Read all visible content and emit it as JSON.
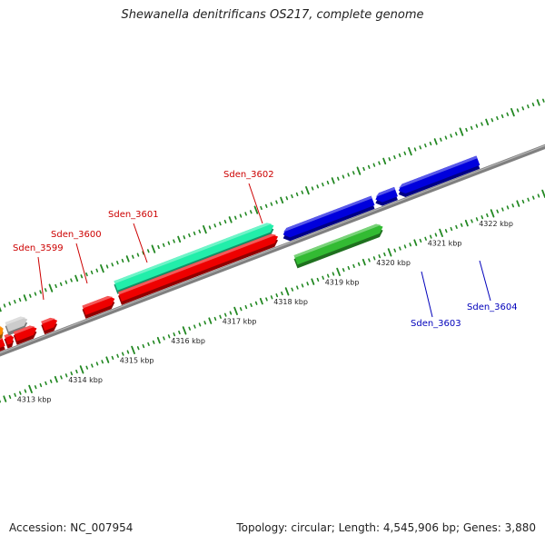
{
  "title": "Shewanella denitrificans OS217, complete genome",
  "footer": {
    "accession": "Accession: NC_007954",
    "topology": "Topology: circular; Length: 4,545,906 bp; Genes: 3,880"
  },
  "colors": {
    "red": "#ee0000",
    "blue": "#0000dd",
    "green": "#33bb33",
    "cyan": "#22eeaa",
    "orange": "#ff8c00",
    "gray": "#cccccc",
    "backbone": "#808080",
    "tick": "#228822",
    "label_red": "#cc0000",
    "label_blue": "#0000bb"
  },
  "scale": {
    "labels": [
      "4313 kbp",
      "4314 kbp",
      "4315 kbp",
      "4316 kbp",
      "4317 kbp",
      "4318 kbp",
      "4319 kbp",
      "4320 kbp",
      "4321 kbp",
      "4322 kbp"
    ]
  },
  "genes": [
    {
      "name": "gene-a",
      "start": 4312.5,
      "end": 4312.85,
      "strand": "-",
      "track": 0,
      "color": "red"
    },
    {
      "name": "gene-b",
      "start": 4312.9,
      "end": 4313.05,
      "strand": "+",
      "track": 0,
      "color": "red"
    },
    {
      "name": "gene-c",
      "start": 4312.8,
      "end": 4312.93,
      "strand": "+",
      "track": 1,
      "color": "orange"
    },
    {
      "name": "gene-d",
      "start": 4313.0,
      "end": 4313.4,
      "strand": "+",
      "track": 1,
      "color": "gray"
    },
    {
      "name": "gene-sden3599",
      "start": 4313.08,
      "end": 4313.5,
      "strand": "+",
      "track": 0,
      "color": "red"
    },
    {
      "name": "gene-sden3600",
      "start": 4313.62,
      "end": 4313.9,
      "strand": "+",
      "track": 0,
      "color": "red"
    },
    {
      "name": "gene-sden3601",
      "start": 4314.42,
      "end": 4315.02,
      "strand": "+",
      "track": 0,
      "color": "red"
    },
    {
      "name": "gene-sden3602-cyan",
      "start": 4315.12,
      "end": 4318.2,
      "strand": "+",
      "track": 1,
      "color": "cyan"
    },
    {
      "name": "gene-sden3602-red",
      "start": 4315.12,
      "end": 4318.2,
      "strand": "+",
      "track": 0,
      "color": "red"
    },
    {
      "name": "gene-sden3603-blue",
      "start": 4318.3,
      "end": 4320.05,
      "strand": "-",
      "track": 0,
      "color": "blue"
    },
    {
      "name": "gene-sden3603-green",
      "start": 4318.35,
      "end": 4320.05,
      "strand": "+",
      "track": -1,
      "color": "green"
    },
    {
      "name": "gene-e",
      "start": 4320.1,
      "end": 4320.5,
      "strand": "-",
      "track": 0,
      "color": "blue"
    },
    {
      "name": "gene-sden3604",
      "start": 4320.55,
      "end": 4322.1,
      "strand": "-",
      "track": 0,
      "color": "blue"
    }
  ],
  "labels": [
    {
      "text": "Sden_3599",
      "color": "label_red"
    },
    {
      "text": "Sden_3600",
      "color": "label_red"
    },
    {
      "text": "Sden_3601",
      "color": "label_red"
    },
    {
      "text": "Sden_3602",
      "color": "label_red"
    },
    {
      "text": "Sden_3603",
      "color": "label_blue"
    },
    {
      "text": "Sden_3604",
      "color": "label_blue"
    }
  ]
}
